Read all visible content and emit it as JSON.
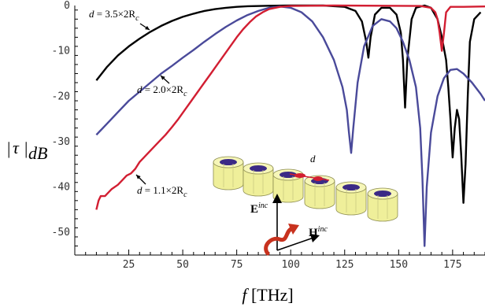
{
  "chart_data": {
    "type": "line",
    "xlabel_var": "f",
    "xlabel_unit": " [THz]",
    "ylabel_var": "τ",
    "ylabel_sub": "dB",
    "xlim": [
      0,
      190
    ],
    "ylim": [
      -55,
      0
    ],
    "xticks": [
      25,
      50,
      75,
      100,
      125,
      150,
      175
    ],
    "yticks": [
      0,
      -10,
      -20,
      -30,
      -40,
      -50
    ],
    "series": [
      {
        "name": "d = 3.5×2Rc",
        "color": "#000000",
        "points": [
          [
            10,
            -16.5
          ],
          [
            15,
            -13.5
          ],
          [
            20,
            -11
          ],
          [
            25,
            -9
          ],
          [
            30,
            -7.3
          ],
          [
            35,
            -5.8
          ],
          [
            40,
            -4.5
          ],
          [
            45,
            -3.4
          ],
          [
            50,
            -2.5
          ],
          [
            55,
            -1.8
          ],
          [
            60,
            -1.2
          ],
          [
            65,
            -0.8
          ],
          [
            70,
            -0.5
          ],
          [
            75,
            -0.3
          ],
          [
            80,
            -0.15
          ],
          [
            90,
            -0.05
          ],
          [
            100,
            0
          ],
          [
            115,
            0
          ],
          [
            125,
            -0.3
          ],
          [
            130,
            -1.2
          ],
          [
            133,
            -3.5
          ],
          [
            135,
            -8
          ],
          [
            136,
            -11.5
          ],
          [
            137,
            -7
          ],
          [
            139,
            -2
          ],
          [
            142,
            -0.5
          ],
          [
            146,
            -0.5
          ],
          [
            149,
            -2
          ],
          [
            151,
            -6
          ],
          [
            152,
            -12
          ],
          [
            153,
            -22.5
          ],
          [
            154,
            -12
          ],
          [
            156,
            -3
          ],
          [
            158,
            -0.5
          ],
          [
            162,
            0
          ],
          [
            165,
            -0.5
          ],
          [
            168,
            -3
          ],
          [
            170,
            -7
          ],
          [
            172,
            -12
          ],
          [
            173,
            -18
          ],
          [
            174,
            -25
          ],
          [
            175,
            -33.5
          ],
          [
            176,
            -27
          ],
          [
            177,
            -23
          ],
          [
            178,
            -25
          ],
          [
            179,
            -33
          ],
          [
            180,
            -43.5
          ],
          [
            181,
            -35
          ],
          [
            182,
            -20
          ],
          [
            183,
            -8
          ],
          [
            185,
            -3
          ],
          [
            188,
            -1.5
          ]
        ]
      },
      {
        "name": "d = 2.0×2Rc",
        "color": "#4a4a9a",
        "points": [
          [
            10,
            -28.5
          ],
          [
            15,
            -26
          ],
          [
            20,
            -23.5
          ],
          [
            25,
            -21
          ],
          [
            30,
            -19
          ],
          [
            35,
            -17
          ],
          [
            40,
            -15
          ],
          [
            45,
            -13.3
          ],
          [
            50,
            -11.5
          ],
          [
            55,
            -9.8
          ],
          [
            60,
            -8
          ],
          [
            65,
            -6.3
          ],
          [
            70,
            -4.7
          ],
          [
            75,
            -3.3
          ],
          [
            80,
            -2.1
          ],
          [
            85,
            -1.2
          ],
          [
            90,
            -0.5
          ],
          [
            95,
            -0.2
          ],
          [
            100,
            -0.5
          ],
          [
            105,
            -1.5
          ],
          [
            110,
            -3.5
          ],
          [
            115,
            -7
          ],
          [
            120,
            -12
          ],
          [
            124,
            -18
          ],
          [
            126,
            -23
          ],
          [
            127,
            -28
          ],
          [
            128,
            -32.5
          ],
          [
            129,
            -27
          ],
          [
            131,
            -17
          ],
          [
            134,
            -9
          ],
          [
            138,
            -4.5
          ],
          [
            142,
            -3
          ],
          [
            146,
            -3.5
          ],
          [
            149,
            -5
          ],
          [
            152,
            -8
          ],
          [
            155,
            -12
          ],
          [
            158,
            -18
          ],
          [
            160,
            -27
          ],
          [
            161,
            -38
          ],
          [
            162,
            -53
          ],
          [
            163,
            -40
          ],
          [
            165,
            -28
          ],
          [
            168,
            -20
          ],
          [
            171,
            -16
          ],
          [
            174,
            -14.2
          ],
          [
            177,
            -14
          ],
          [
            180,
            -15
          ],
          [
            184,
            -17
          ],
          [
            188,
            -19.5
          ],
          [
            190,
            -21
          ]
        ]
      },
      {
        "name": "d = 1.1×2Rc",
        "color": "#d21e32",
        "points": [
          [
            10,
            -45
          ],
          [
            11,
            -43
          ],
          [
            12,
            -42
          ],
          [
            13,
            -42
          ],
          [
            14,
            -42
          ],
          [
            15,
            -41.5
          ],
          [
            17,
            -40.5
          ],
          [
            20,
            -39.5
          ],
          [
            22,
            -38.5
          ],
          [
            24,
            -37.5
          ],
          [
            26,
            -37
          ],
          [
            28,
            -36
          ],
          [
            30,
            -34.5
          ],
          [
            33,
            -33
          ],
          [
            36,
            -31.5
          ],
          [
            39,
            -30
          ],
          [
            42,
            -28.5
          ],
          [
            45,
            -26.8
          ],
          [
            48,
            -25
          ],
          [
            51,
            -23
          ],
          [
            54,
            -21
          ],
          [
            57,
            -19
          ],
          [
            60,
            -17
          ],
          [
            63,
            -15
          ],
          [
            66,
            -13
          ],
          [
            69,
            -11
          ],
          [
            72,
            -9
          ],
          [
            75,
            -7
          ],
          [
            78,
            -5.2
          ],
          [
            81,
            -3.7
          ],
          [
            84,
            -2.4
          ],
          [
            87,
            -1.5
          ],
          [
            90,
            -0.8
          ],
          [
            95,
            -0.3
          ],
          [
            100,
            -0.1
          ],
          [
            120,
            0
          ],
          [
            160,
            -0.1
          ],
          [
            165,
            -0.5
          ],
          [
            167,
            -1.5
          ],
          [
            168,
            -3
          ],
          [
            169,
            -6
          ],
          [
            170,
            -10
          ],
          [
            171,
            -6
          ],
          [
            172,
            -1.5
          ],
          [
            174,
            -0.3
          ],
          [
            180,
            -0.3
          ],
          [
            190,
            -0.2
          ]
        ]
      }
    ],
    "annotations": [
      {
        "var": "d",
        "text": " = 3.5×2R",
        "sub": "c"
      },
      {
        "var": "d",
        "text": " = 2.0×2R",
        "sub": "c"
      },
      {
        "var": "d",
        "text": " = 1.1×2R",
        "sub": "c"
      }
    ],
    "inset": {
      "d_label": "d",
      "e_label": "E",
      "e_sup": "inc",
      "h_label": "H",
      "h_sup": "inc"
    }
  }
}
